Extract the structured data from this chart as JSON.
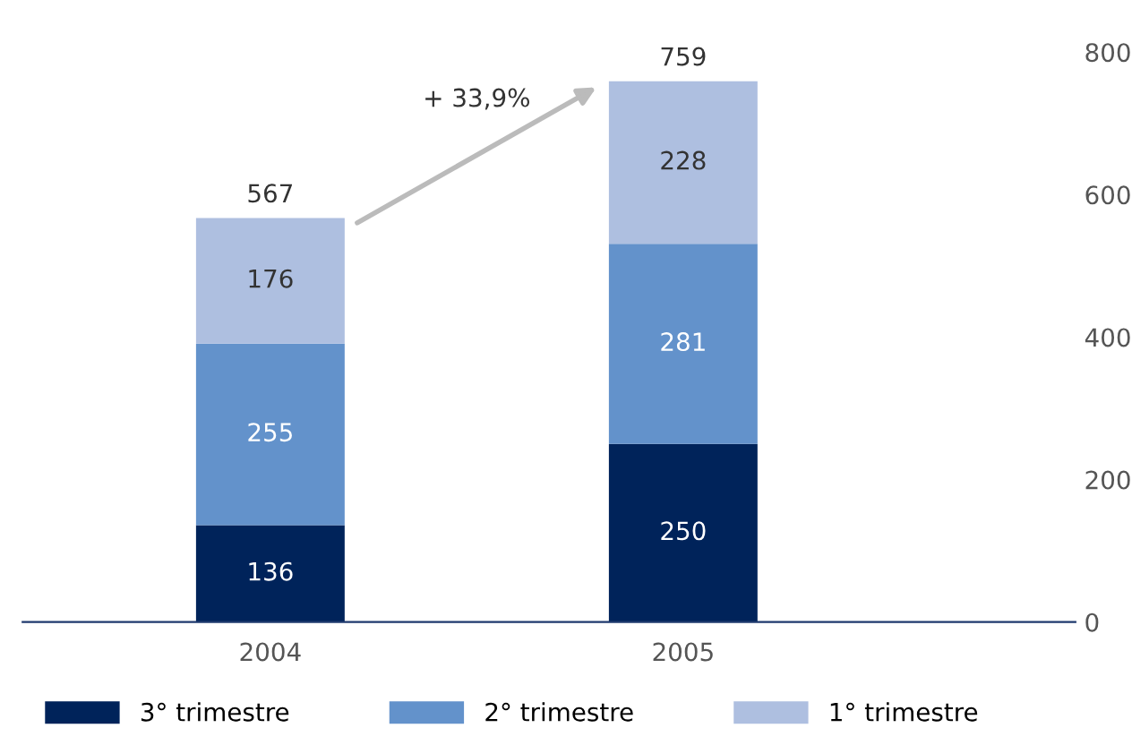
{
  "chart_data": {
    "type": "bar",
    "stacked": true,
    "categories": [
      "2004",
      "2005"
    ],
    "series": [
      {
        "name": "3° trimestre",
        "color": "#00235a",
        "values": [
          136,
          250
        ]
      },
      {
        "name": "2° trimestre",
        "color": "#6392cb",
        "values": [
          255,
          281
        ]
      },
      {
        "name": "1° trimestre",
        "color": "#aebfe0",
        "values": [
          176,
          228
        ]
      }
    ],
    "data_labels": true,
    "totals": [
      "567",
      "759"
    ],
    "annotations": [
      "+ 33,9%"
    ],
    "ylim": [
      0,
      800
    ],
    "yticks": [
      0,
      200,
      400,
      600,
      800
    ],
    "grid": false,
    "legend": "bottom"
  }
}
